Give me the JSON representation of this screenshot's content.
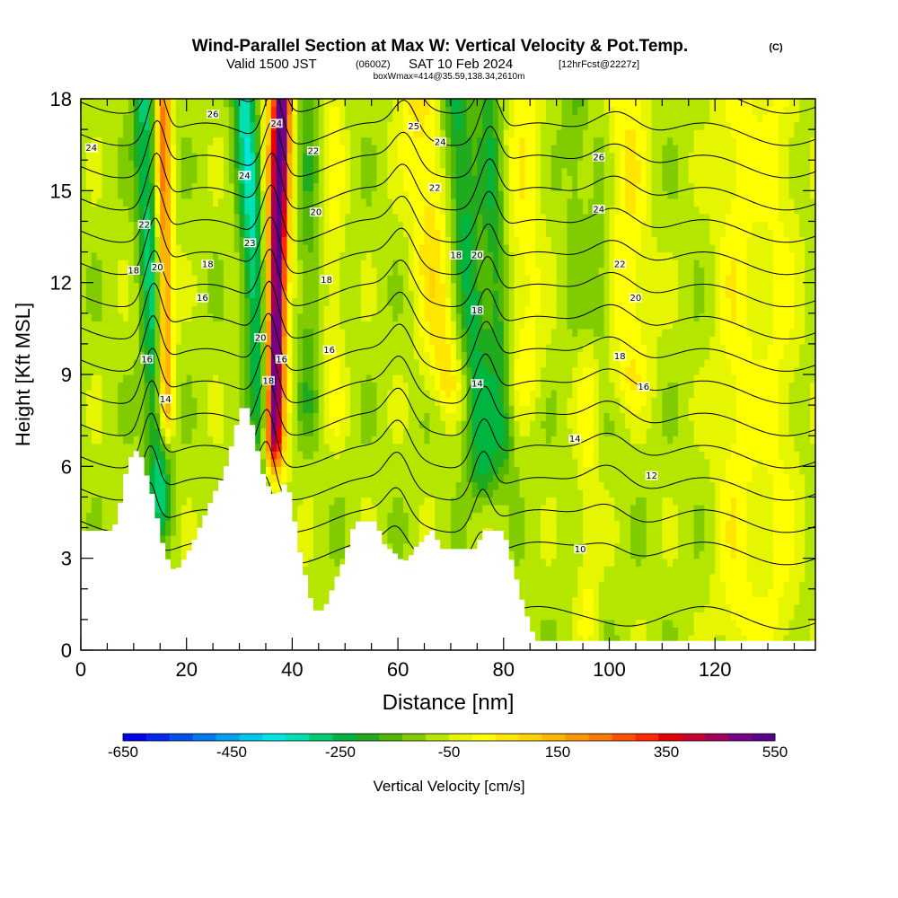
{
  "header": {
    "title_main": "Wind-Parallel Section at Max W: Vertical Velocity & Pot.Temp.",
    "title_copyright": "(C)",
    "subtitle_valid": "Valid 1500 JST",
    "subtitle_utc": "(0600Z)",
    "subtitle_date": "SAT 10 Feb 2024",
    "subtitle_fcst": "[12hrFcst@2227z]",
    "subtitle_box": "boxWmax=414@35.59,138.34,2610m"
  },
  "chart_data": {
    "type": "heatmap",
    "title": "Wind-Parallel Section at Max W: Vertical Velocity & Pot.Temp.",
    "xlabel": "Distance [nm]",
    "ylabel": "Height [Kft MSL]",
    "xlim": [
      0,
      139
    ],
    "ylim": [
      0,
      18
    ],
    "x_ticks": [
      0,
      20,
      40,
      60,
      80,
      100,
      120
    ],
    "x_tick_labels": [
      "0",
      "20",
      "40",
      "60",
      "80",
      "100",
      "120"
    ],
    "y_ticks": [
      0,
      3,
      6,
      9,
      12,
      15,
      18
    ],
    "y_tick_labels": [
      "0",
      "3",
      "6",
      "9",
      "12",
      "15",
      "18"
    ],
    "grid": false,
    "colorbar": {
      "label": "Vertical Velocity [cm/s]",
      "min": -650,
      "max": 550,
      "step": 50,
      "tick_values": [
        -650,
        -450,
        -250,
        -50,
        150,
        350,
        550
      ],
      "tick_labels": [
        "-650",
        "-450",
        "-250",
        "-50",
        "150",
        "350",
        "550"
      ],
      "colors": [
        "#0000f0",
        "#0028f0",
        "#0050f0",
        "#0078f0",
        "#00a0f0",
        "#00c8f0",
        "#00e6e6",
        "#00e0b0",
        "#00cc70",
        "#00b440",
        "#20aa20",
        "#50b800",
        "#80cc00",
        "#b4e600",
        "#e6f500",
        "#ffff00",
        "#ffe600",
        "#ffd200",
        "#ffb400",
        "#ff9600",
        "#ff7800",
        "#ff5000",
        "#ff2800",
        "#e60000",
        "#c80032",
        "#a0005a",
        "#780082",
        "#5a008c"
      ]
    },
    "terrain": [
      [
        0,
        3.9
      ],
      [
        6,
        3.9
      ],
      [
        7,
        4.3
      ],
      [
        8,
        5.3
      ],
      [
        9,
        6.2
      ],
      [
        11,
        6.6
      ],
      [
        12,
        6.0
      ],
      [
        13,
        5.4
      ],
      [
        14,
        4.8
      ],
      [
        15,
        3.8
      ],
      [
        16,
        3.2
      ],
      [
        17,
        2.7
      ],
      [
        18,
        2.6
      ],
      [
        19,
        2.8
      ],
      [
        20,
        3.1
      ],
      [
        21,
        3.4
      ],
      [
        22,
        3.8
      ],
      [
        23,
        4.2
      ],
      [
        24,
        4.6
      ],
      [
        25,
        5.0
      ],
      [
        26,
        5.4
      ],
      [
        27,
        5.7
      ],
      [
        28,
        6.3
      ],
      [
        29,
        7.0
      ],
      [
        30,
        7.7
      ],
      [
        31,
        8.1
      ],
      [
        32,
        7.7
      ],
      [
        33,
        7.0
      ],
      [
        34,
        6.0
      ],
      [
        35,
        5.5
      ],
      [
        36,
        5.2
      ],
      [
        37,
        5.0
      ],
      [
        38,
        5.3
      ],
      [
        39,
        5.5
      ],
      [
        40,
        4.8
      ],
      [
        41,
        3.6
      ],
      [
        42,
        2.8
      ],
      [
        43,
        2.1
      ],
      [
        44,
        1.3
      ],
      [
        46,
        1.3
      ],
      [
        47,
        1.7
      ],
      [
        48,
        2.2
      ],
      [
        49,
        2.6
      ],
      [
        50,
        3.0
      ],
      [
        51,
        3.7
      ],
      [
        52,
        4.2
      ],
      [
        56,
        4.2
      ],
      [
        57,
        3.6
      ],
      [
        58,
        3.3
      ],
      [
        59,
        3.3
      ],
      [
        60,
        3.0
      ],
      [
        62,
        2.9
      ],
      [
        63,
        3.3
      ],
      [
        65,
        3.6
      ],
      [
        66,
        3.9
      ],
      [
        67,
        3.9
      ],
      [
        68,
        3.3
      ],
      [
        75,
        3.3
      ],
      [
        76,
        3.9
      ],
      [
        80,
        3.9
      ],
      [
        81,
        3.3
      ],
      [
        82,
        2.6
      ],
      [
        83,
        2.0
      ],
      [
        84,
        1.3
      ],
      [
        85,
        0.9
      ],
      [
        86,
        0.3
      ],
      [
        87,
        0.3
      ],
      [
        139,
        0.3
      ]
    ],
    "vv_features": [
      {
        "x_top": 12,
        "x_bot": 15,
        "width": 2.2,
        "value": -250,
        "z_bot": 5
      },
      {
        "x_top": 15.5,
        "x_bot": 16,
        "width": 1.6,
        "value": 350,
        "z_bot": 8
      },
      {
        "x_top": 31,
        "x_bot": 35,
        "width": 2.2,
        "value": -300,
        "z_bot": 6
      },
      {
        "x_top": 38,
        "x_bot": 36.5,
        "width": 1.6,
        "value": 500,
        "z_bot": 7
      },
      {
        "x_top": 37.5,
        "x_bot": 36,
        "width": 2.6,
        "value": 250,
        "z_bot": 6
      },
      {
        "x_top": 71,
        "x_bot": 76,
        "width": 3.0,
        "value": -200,
        "z_bot": 6
      },
      {
        "x_top": 77,
        "x_bot": 80,
        "width": 2.2,
        "value": -150,
        "z_bot": 7
      },
      {
        "x_top": 64,
        "x_bot": 69,
        "width": 4.0,
        "value": 150,
        "z_bot": 9
      },
      {
        "x_top": 95,
        "x_bot": 97,
        "width": 3.5,
        "value": -120,
        "z_bot": 11
      },
      {
        "x_top": 103,
        "x_bot": 104,
        "width": 4.0,
        "value": 120,
        "z_bot": 9
      },
      {
        "x_top": 84,
        "x_bot": 84,
        "width": 3.5,
        "value": 100,
        "z_bot": 9
      },
      {
        "x_top": 43,
        "x_bot": 43,
        "width": 2.0,
        "value": -100,
        "z_bot": 8
      },
      {
        "x_top": 48,
        "x_bot": 48,
        "width": 2.0,
        "value": 80,
        "z_bot": 8
      },
      {
        "x_top": 124,
        "x_bot": 124,
        "width": 4.0,
        "value": 100,
        "z_bot": 1
      },
      {
        "x_top": 132,
        "x_bot": 132,
        "width": 4.0,
        "value": 80,
        "z_bot": 1
      },
      {
        "x_top": 96,
        "x_bot": 96,
        "width": 2.0,
        "value": 80,
        "z_bot": 1
      }
    ],
    "contour_levels": [
      10,
      12,
      13,
      14,
      15,
      16,
      17,
      18,
      19,
      20,
      21,
      22,
      23,
      24,
      25,
      26
    ],
    "contour_labels": [
      {
        "x": 2,
        "y": 16.4,
        "text": "24"
      },
      {
        "x": 25,
        "y": 17.5,
        "text": "26"
      },
      {
        "x": 12,
        "y": 13.9,
        "text": "22"
      },
      {
        "x": 10,
        "y": 12.4,
        "text": "18"
      },
      {
        "x": 14.5,
        "y": 12.5,
        "text": "20"
      },
      {
        "x": 24,
        "y": 12.6,
        "text": "18"
      },
      {
        "x": 23,
        "y": 11.5,
        "text": "16"
      },
      {
        "x": 12.5,
        "y": 9.5,
        "text": "16"
      },
      {
        "x": 16,
        "y": 8.2,
        "text": "14"
      },
      {
        "x": 31,
        "y": 15.5,
        "text": "24"
      },
      {
        "x": 32,
        "y": 13.3,
        "text": "23"
      },
      {
        "x": 34,
        "y": 10.2,
        "text": "20"
      },
      {
        "x": 37,
        "y": 17.2,
        "text": "24"
      },
      {
        "x": 35.5,
        "y": 8.8,
        "text": "18"
      },
      {
        "x": 38,
        "y": 9.5,
        "text": "16"
      },
      {
        "x": 44,
        "y": 16.3,
        "text": "22"
      },
      {
        "x": 44.5,
        "y": 14.3,
        "text": "20"
      },
      {
        "x": 46.5,
        "y": 12.1,
        "text": "18"
      },
      {
        "x": 47,
        "y": 9.8,
        "text": "16"
      },
      {
        "x": 63,
        "y": 17.1,
        "text": "25"
      },
      {
        "x": 68,
        "y": 16.6,
        "text": "24"
      },
      {
        "x": 67,
        "y": 15.1,
        "text": "22"
      },
      {
        "x": 71,
        "y": 12.9,
        "text": "18"
      },
      {
        "x": 75,
        "y": 12.9,
        "text": "20"
      },
      {
        "x": 75,
        "y": 11.1,
        "text": "18"
      },
      {
        "x": 75,
        "y": 8.7,
        "text": "14"
      },
      {
        "x": 98,
        "y": 16.1,
        "text": "26"
      },
      {
        "x": 98,
        "y": 14.4,
        "text": "24"
      },
      {
        "x": 102,
        "y": 12.6,
        "text": "22"
      },
      {
        "x": 105,
        "y": 11.5,
        "text": "20"
      },
      {
        "x": 102,
        "y": 9.6,
        "text": "18"
      },
      {
        "x": 106.5,
        "y": 8.6,
        "text": "16"
      },
      {
        "x": 93.5,
        "y": 6.9,
        "text": "14"
      },
      {
        "x": 108,
        "y": 5.7,
        "text": "12"
      },
      {
        "x": 94.5,
        "y": 3.3,
        "text": "10"
      }
    ]
  },
  "colors": {
    "background": "#ffffff",
    "terrain": "#ffffff",
    "contour": "#000000",
    "axis": "#000000"
  }
}
